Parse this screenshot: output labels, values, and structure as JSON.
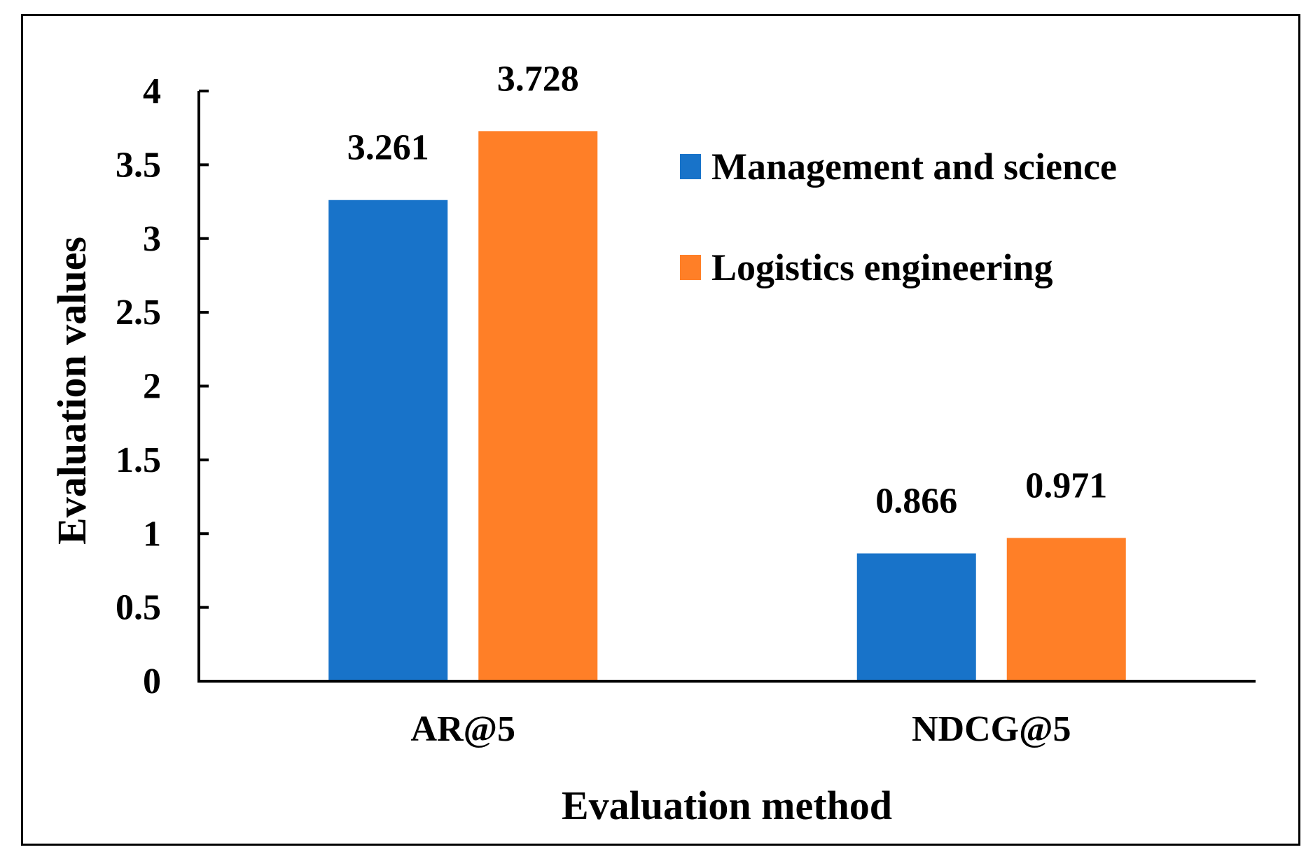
{
  "chart_data": {
    "type": "bar",
    "title": "",
    "xlabel": "Evaluation method",
    "ylabel": "Evaluation values",
    "categories": [
      "AR@5",
      "NDCG@5"
    ],
    "series": [
      {
        "name": "Management and science",
        "color": "#1873c9",
        "values": [
          3.261,
          0.866
        ],
        "labels": [
          "3.261",
          "0.866"
        ]
      },
      {
        "name": "Logistics engineering",
        "color": "#ff7f27",
        "values": [
          3.728,
          0.971
        ],
        "labels": [
          "3.728",
          "0.971"
        ]
      }
    ],
    "ylim": [
      0,
      4
    ],
    "yticks": [
      "0",
      "0.5",
      "1",
      "1.5",
      "2",
      "2.5",
      "3",
      "3.5",
      "4"
    ],
    "grid": false,
    "legend_position": "top-right"
  }
}
